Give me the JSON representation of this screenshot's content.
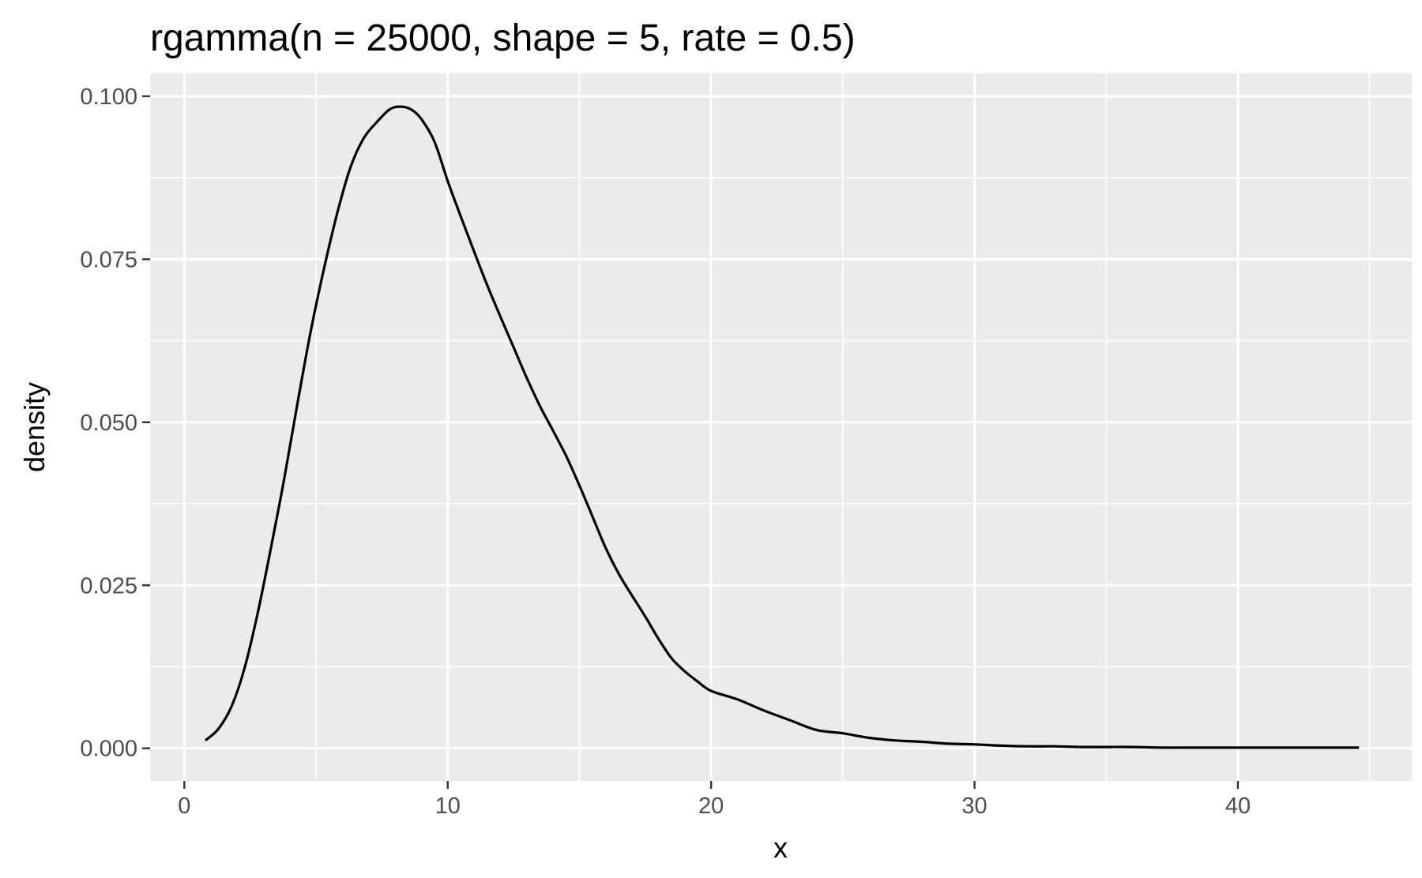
{
  "chart_data": {
    "type": "line",
    "geom": "density",
    "title": "rgamma(n = 25000, shape = 5, rate = 0.5)",
    "xlabel": "x",
    "ylabel": "density",
    "xlim": [
      -1.3,
      46.6
    ],
    "ylim": [
      -0.005,
      0.1035
    ],
    "x_ticks": [
      0,
      10,
      20,
      30,
      40
    ],
    "x_tick_labels": [
      "0",
      "10",
      "20",
      "30",
      "40"
    ],
    "x_minor_breaks": [
      5,
      15,
      25,
      35,
      45
    ],
    "y_ticks": [
      0,
      0.025,
      0.05,
      0.075,
      0.1
    ],
    "y_tick_labels": [
      "0.000",
      "0.025",
      "0.050",
      "0.075",
      "0.100"
    ],
    "y_minor_breaks": [
      0.0125,
      0.0375,
      0.0625,
      0.0875
    ],
    "grid": true,
    "legend": "none",
    "colors": {
      "panel": "#ebebeb",
      "grid": "#ffffff",
      "line": "#000000",
      "tick_label": "#4d4d4d"
    },
    "series": [
      {
        "x": [
          0.8,
          1.3,
          1.8,
          2.3,
          2.8,
          3.3,
          3.8,
          4.3,
          4.8,
          5.3,
          5.8,
          6.3,
          6.8,
          7.3,
          7.8,
          8.2,
          8.6,
          9.0,
          9.5,
          10.0,
          10.5,
          11.0,
          11.5,
          12.0,
          12.5,
          13.0,
          13.5,
          14.0,
          14.5,
          15.0,
          15.5,
          16.0,
          16.5,
          17.0,
          17.5,
          18.0,
          18.5,
          19.0,
          19.5,
          20.0,
          21.0,
          22.0,
          23.0,
          24.0,
          25.0,
          26.0,
          27.0,
          28.0,
          29.0,
          30.0,
          31.0,
          32.0,
          33.0,
          34.0,
          35.0,
          36.0,
          37.0,
          38.0,
          39.0,
          40.0,
          41.0,
          42.0,
          43.0,
          44.0,
          44.6
        ],
        "y": [
          0.0012,
          0.003,
          0.0065,
          0.0125,
          0.021,
          0.031,
          0.0415,
          0.053,
          0.064,
          0.0735,
          0.082,
          0.089,
          0.0935,
          0.096,
          0.098,
          0.0984,
          0.098,
          0.0965,
          0.093,
          0.087,
          0.0815,
          0.0762,
          0.071,
          0.0662,
          0.0615,
          0.0568,
          0.0525,
          0.0487,
          0.0448,
          0.0403,
          0.0355,
          0.0307,
          0.0267,
          0.0234,
          0.0202,
          0.0168,
          0.0138,
          0.0118,
          0.0102,
          0.0088,
          0.0075,
          0.0058,
          0.0043,
          0.0028,
          0.0023,
          0.0016,
          0.0012,
          0.001,
          0.0007,
          0.0006,
          0.0004,
          0.0003,
          0.0003,
          0.0002,
          0.0002,
          0.0002,
          0.0001,
          0.0001,
          0.0001,
          0.0001,
          0.0001,
          0.0001,
          0.0001,
          0.0001,
          0.0001
        ]
      }
    ]
  }
}
